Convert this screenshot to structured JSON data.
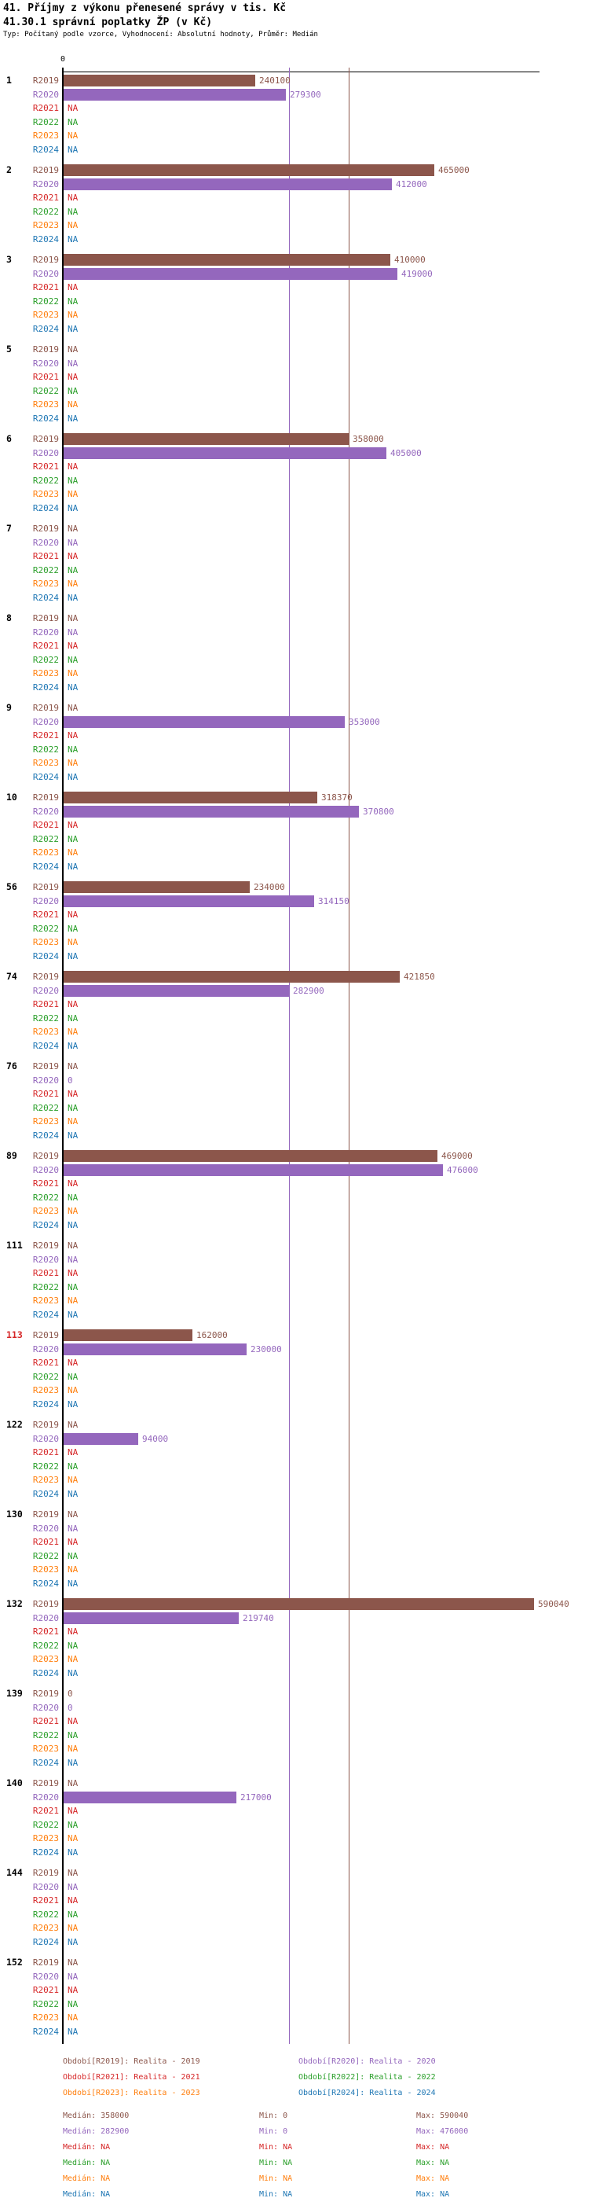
{
  "title": "41. Příjmy z výkonu přenesené správy v tis. Kč",
  "subtitle": "41.30.1 správní poplatky ŽP (v Kč)",
  "meta_line": "Typ: Počítaný podle vzorce, Vyhodnocení: Absolutní hodnoty, Průměr: Medián",
  "axis_zero_label": "0",
  "na_text": "NA",
  "series": [
    {
      "key": "R2019",
      "label": "R2019",
      "color": "#8c564b",
      "legend": "Období[R2019]: Realita - 2019"
    },
    {
      "key": "R2020",
      "label": "R2020",
      "color": "#9467bd",
      "legend": "Období[R2020]: Realita - 2020"
    },
    {
      "key": "R2021",
      "label": "R2021",
      "color": "#d62728",
      "legend": "Období[R2021]: Realita - 2021"
    },
    {
      "key": "R2022",
      "label": "R2022",
      "color": "#2ca02c",
      "legend": "Období[R2022]: Realita - 2022"
    },
    {
      "key": "R2023",
      "label": "R2023",
      "color": "#ff7f0e",
      "legend": "Období[R2023]: Realita - 2023"
    },
    {
      "key": "R2024",
      "label": "R2024",
      "color": "#1f77b4",
      "legend": "Období[R2024]: Realita - 2024"
    }
  ],
  "legend_columns": {
    "left": [
      "R2019",
      "R2021",
      "R2023"
    ],
    "right": [
      "R2020",
      "R2022",
      "R2024"
    ]
  },
  "chart_data": {
    "type": "bar",
    "orientation": "horizontal",
    "x_axis": {
      "min": 0,
      "max": 590040,
      "zero_tick_label": "0",
      "grid": false
    },
    "categories": [
      "1",
      "2",
      "3",
      "5",
      "6",
      "7",
      "8",
      "9",
      "10",
      "56",
      "74",
      "76",
      "89",
      "111",
      "113",
      "122",
      "130",
      "132",
      "139",
      "140",
      "144",
      "152"
    ],
    "highlighted_categories": [
      "113"
    ],
    "series_order": [
      "R2019",
      "R2020",
      "R2021",
      "R2022",
      "R2023",
      "R2024"
    ],
    "groups": [
      {
        "id": "1",
        "R2019": 240100,
        "R2020": 279300,
        "R2021": "NA",
        "R2022": "NA",
        "R2023": "NA",
        "R2024": "NA"
      },
      {
        "id": "2",
        "R2019": 465000,
        "R2020": 412000,
        "R2021": "NA",
        "R2022": "NA",
        "R2023": "NA",
        "R2024": "NA"
      },
      {
        "id": "3",
        "R2019": 410000,
        "R2020": 419000,
        "R2021": "NA",
        "R2022": "NA",
        "R2023": "NA",
        "R2024": "NA"
      },
      {
        "id": "5",
        "R2019": "NA",
        "R2020": "NA",
        "R2021": "NA",
        "R2022": "NA",
        "R2023": "NA",
        "R2024": "NA"
      },
      {
        "id": "6",
        "R2019": 358000,
        "R2020": 405000,
        "R2021": "NA",
        "R2022": "NA",
        "R2023": "NA",
        "R2024": "NA"
      },
      {
        "id": "7",
        "R2019": "NA",
        "R2020": "NA",
        "R2021": "NA",
        "R2022": "NA",
        "R2023": "NA",
        "R2024": "NA"
      },
      {
        "id": "8",
        "R2019": "NA",
        "R2020": "NA",
        "R2021": "NA",
        "R2022": "NA",
        "R2023": "NA",
        "R2024": "NA"
      },
      {
        "id": "9",
        "R2019": "NA",
        "R2020": 353000,
        "R2021": "NA",
        "R2022": "NA",
        "R2023": "NA",
        "R2024": "NA"
      },
      {
        "id": "10",
        "R2019": 318370,
        "R2020": 370800,
        "R2021": "NA",
        "R2022": "NA",
        "R2023": "NA",
        "R2024": "NA"
      },
      {
        "id": "56",
        "R2019": 234000,
        "R2020": 314150,
        "R2021": "NA",
        "R2022": "NA",
        "R2023": "NA",
        "R2024": "NA"
      },
      {
        "id": "74",
        "R2019": 421850,
        "R2020": 282900,
        "R2021": "NA",
        "R2022": "NA",
        "R2023": "NA",
        "R2024": "NA"
      },
      {
        "id": "76",
        "R2019": "NA",
        "R2020": 0,
        "R2021": "NA",
        "R2022": "NA",
        "R2023": "NA",
        "R2024": "NA"
      },
      {
        "id": "89",
        "R2019": 469000,
        "R2020": 476000,
        "R2021": "NA",
        "R2022": "NA",
        "R2023": "NA",
        "R2024": "NA"
      },
      {
        "id": "111",
        "R2019": "NA",
        "R2020": "NA",
        "R2021": "NA",
        "R2022": "NA",
        "R2023": "NA",
        "R2024": "NA"
      },
      {
        "id": "113",
        "R2019": 162000,
        "R2020": 230000,
        "R2021": "NA",
        "R2022": "NA",
        "R2023": "NA",
        "R2024": "NA"
      },
      {
        "id": "122",
        "R2019": "NA",
        "R2020": 94000,
        "R2021": "NA",
        "R2022": "NA",
        "R2023": "NA",
        "R2024": "NA"
      },
      {
        "id": "130",
        "R2019": "NA",
        "R2020": "NA",
        "R2021": "NA",
        "R2022": "NA",
        "R2023": "NA",
        "R2024": "NA"
      },
      {
        "id": "132",
        "R2019": 590040,
        "R2020": 219740,
        "R2021": "NA",
        "R2022": "NA",
        "R2023": "NA",
        "R2024": "NA"
      },
      {
        "id": "139",
        "R2019": 0,
        "R2020": 0,
        "R2021": "NA",
        "R2022": "NA",
        "R2023": "NA",
        "R2024": "NA"
      },
      {
        "id": "140",
        "R2019": "NA",
        "R2020": 217000,
        "R2021": "NA",
        "R2022": "NA",
        "R2023": "NA",
        "R2024": "NA"
      },
      {
        "id": "144",
        "R2019": "NA",
        "R2020": "NA",
        "R2021": "NA",
        "R2022": "NA",
        "R2023": "NA",
        "R2024": "NA"
      },
      {
        "id": "152",
        "R2019": "NA",
        "R2020": "NA",
        "R2021": "NA",
        "R2022": "NA",
        "R2023": "NA",
        "R2024": "NA"
      }
    ],
    "median_lines": [
      {
        "series": "R2019",
        "value": 358000,
        "color": "#8c564b"
      },
      {
        "series": "R2020",
        "value": 282900,
        "color": "#9467bd"
      }
    ]
  },
  "stats": {
    "median_label": "Medián",
    "min_label": "Min",
    "max_label": "Max",
    "median": [
      "358000",
      "282900",
      "NA",
      "NA",
      "NA",
      "NA"
    ],
    "min": [
      "0",
      "0",
      "NA",
      "NA",
      "NA",
      "NA"
    ],
    "max": [
      "590040",
      "476000",
      "NA",
      "NA",
      "NA",
      "NA"
    ]
  },
  "highlight_color": "#d62728"
}
